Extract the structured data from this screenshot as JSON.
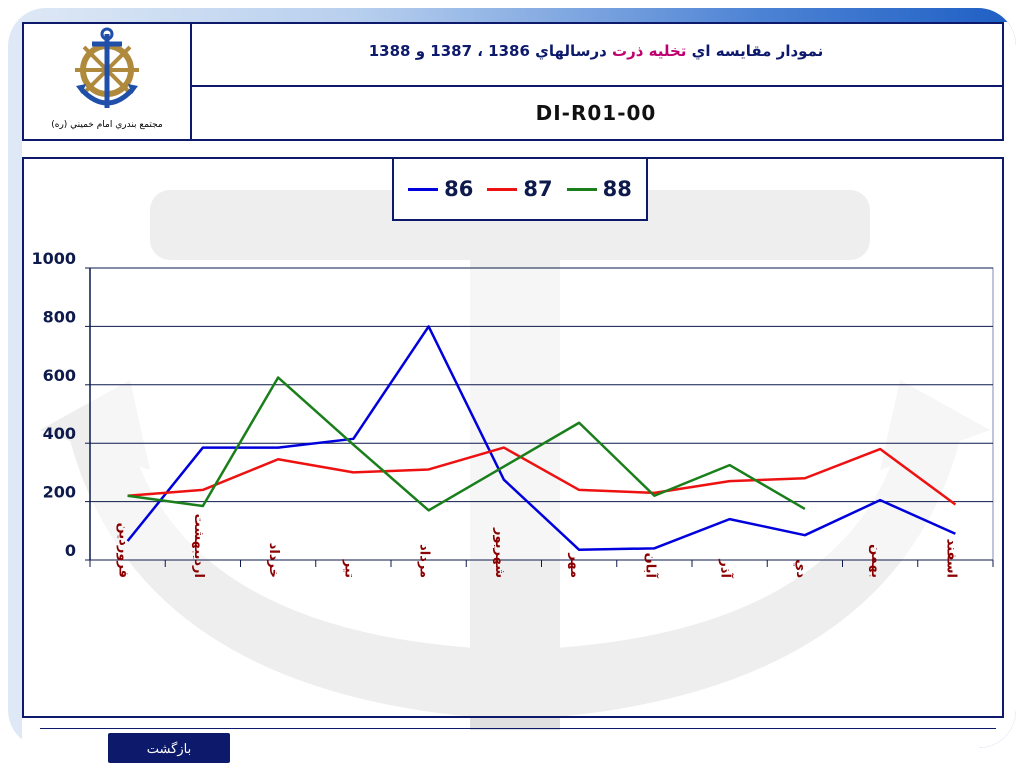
{
  "header": {
    "logo_caption": "مجتمع بندري امام خميني (ره)",
    "title_parts": [
      {
        "text": "نمودار مقايسه اي ",
        "color": "#0d1a6b"
      },
      {
        "text": "تخليه ذرت",
        "color": "#c0006f"
      },
      {
        "text": " درسالهاي 1386 ، 1387 و 1388",
        "color": "#0d1a6b"
      }
    ],
    "code": "DI-R01-00"
  },
  "footer": {
    "back_label": "بازگشت"
  },
  "colors": {
    "frame_border": "#0d1a6b",
    "accent_blue": "#1e5fc4",
    "tick_label": "#8b0000"
  },
  "chart_data": {
    "type": "line",
    "categories": [
      "فروردين",
      "ارديبهشت",
      "خرداد",
      "تير",
      "مرداد",
      "شهريور",
      "مهر",
      "آبان",
      "آذر",
      "دي",
      "بهمن",
      "اسفند"
    ],
    "ylim": [
      0,
      1000
    ],
    "yticks": [
      "1000",
      "800",
      "600",
      "400",
      "200",
      "0"
    ],
    "ytick_values": [
      1000,
      800,
      600,
      400,
      200,
      0
    ],
    "grid": true,
    "legend_position": "top-center",
    "series": [
      {
        "name": "86",
        "color": "#0000dd",
        "values": [
          65,
          385,
          385,
          415,
          800,
          275,
          35,
          40,
          140,
          85,
          205,
          90
        ]
      },
      {
        "name": "87",
        "color": "#ee1111",
        "values": [
          220,
          240,
          345,
          300,
          310,
          385,
          240,
          230,
          270,
          280,
          380,
          190
        ]
      },
      {
        "name": "88",
        "color": "#1a7f1a",
        "values": [
          220,
          185,
          625,
          395,
          170,
          320,
          470,
          220,
          325,
          175,
          null,
          null
        ]
      }
    ]
  }
}
